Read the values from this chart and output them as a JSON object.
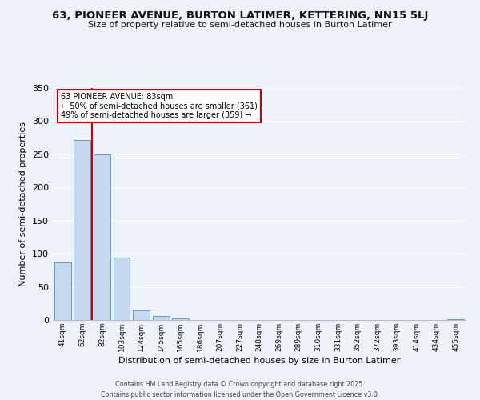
{
  "title": "63, PIONEER AVENUE, BURTON LATIMER, KETTERING, NN15 5LJ",
  "subtitle": "Size of property relative to semi-detached houses in Burton Latimer",
  "xlabel": "Distribution of semi-detached houses by size in Burton Latimer",
  "ylabel": "Number of semi-detached properties",
  "bar_labels": [
    "41sqm",
    "62sqm",
    "82sqm",
    "103sqm",
    "124sqm",
    "145sqm",
    "165sqm",
    "186sqm",
    "207sqm",
    "227sqm",
    "248sqm",
    "269sqm",
    "289sqm",
    "310sqm",
    "331sqm",
    "352sqm",
    "372sqm",
    "393sqm",
    "414sqm",
    "434sqm",
    "455sqm"
  ],
  "bar_values": [
    87,
    271,
    250,
    94,
    15,
    6,
    2,
    0,
    0,
    0,
    0,
    0,
    0,
    0,
    0,
    0,
    0,
    0,
    0,
    0,
    1
  ],
  "bar_color": "#c6d9f0",
  "bar_edge_color": "#5b9bd5",
  "annotation_title": "63 PIONEER AVENUE: 83sqm",
  "annotation_line1": "← 50% of semi-detached houses are smaller (361)",
  "annotation_line2": "49% of semi-detached houses are larger (359) →",
  "ylim": [
    0,
    350
  ],
  "yticks": [
    0,
    50,
    100,
    150,
    200,
    250,
    300,
    350
  ],
  "bg_color": "#eef2fa",
  "grid_color": "#ffffff",
  "annotation_box_color": "#ffffff",
  "annotation_box_edge": "#cc0000",
  "property_line_color": "#cc0000",
  "footer1": "Contains HM Land Registry data © Crown copyright and database right 2025.",
  "footer2": "Contains public sector information licensed under the Open Government Licence v3.0."
}
